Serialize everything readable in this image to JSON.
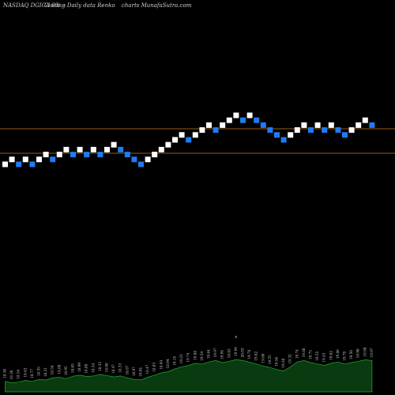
{
  "header": {
    "symbol_label": "NASDAQ DGICA 0% --",
    "chart_type_label": "Closing Daily data  Renko",
    "site_label": "charts MunafaSutra.com"
  },
  "colors": {
    "background": "#000000",
    "up_brick": "#ffffff",
    "down_brick": "#1e7cf2",
    "level_line": "#c8781e",
    "volume_fill": "#0a3a10",
    "volume_stroke": "#1fae2e",
    "label_text": "#cfcfcf"
  },
  "chart_data": {
    "type": "renko",
    "brick_size": 1,
    "levels": [
      5,
      0
    ],
    "bricks": [
      {
        "value": 0,
        "dir": "up"
      },
      {
        "value": 1,
        "dir": "up"
      },
      {
        "value": 0,
        "dir": "down"
      },
      {
        "value": 1,
        "dir": "up"
      },
      {
        "value": 0,
        "dir": "down"
      },
      {
        "value": 1,
        "dir": "up"
      },
      {
        "value": 2,
        "dir": "up"
      },
      {
        "value": 1,
        "dir": "down"
      },
      {
        "value": 2,
        "dir": "up"
      },
      {
        "value": 3,
        "dir": "up"
      },
      {
        "value": 2,
        "dir": "down"
      },
      {
        "value": 3,
        "dir": "up"
      },
      {
        "value": 2,
        "dir": "down"
      },
      {
        "value": 3,
        "dir": "up"
      },
      {
        "value": 2,
        "dir": "down"
      },
      {
        "value": 3,
        "dir": "up"
      },
      {
        "value": 4,
        "dir": "up"
      },
      {
        "value": 3,
        "dir": "down"
      },
      {
        "value": 2,
        "dir": "down"
      },
      {
        "value": 1,
        "dir": "down"
      },
      {
        "value": 0,
        "dir": "down"
      },
      {
        "value": 1,
        "dir": "up"
      },
      {
        "value": 2,
        "dir": "up"
      },
      {
        "value": 3,
        "dir": "up"
      },
      {
        "value": 4,
        "dir": "up"
      },
      {
        "value": 5,
        "dir": "up"
      },
      {
        "value": 6,
        "dir": "up"
      },
      {
        "value": 5,
        "dir": "down"
      },
      {
        "value": 6,
        "dir": "up"
      },
      {
        "value": 7,
        "dir": "up"
      },
      {
        "value": 8,
        "dir": "up"
      },
      {
        "value": 7,
        "dir": "down"
      },
      {
        "value": 8,
        "dir": "up"
      },
      {
        "value": 9,
        "dir": "up"
      },
      {
        "value": 10,
        "dir": "up"
      },
      {
        "value": 9,
        "dir": "down"
      },
      {
        "value": 10,
        "dir": "up"
      },
      {
        "value": 9,
        "dir": "down"
      },
      {
        "value": 8,
        "dir": "down"
      },
      {
        "value": 7,
        "dir": "down"
      },
      {
        "value": 6,
        "dir": "down"
      },
      {
        "value": 5,
        "dir": "down"
      },
      {
        "value": 6,
        "dir": "up"
      },
      {
        "value": 7,
        "dir": "up"
      },
      {
        "value": 8,
        "dir": "up"
      },
      {
        "value": 7,
        "dir": "down"
      },
      {
        "value": 8,
        "dir": "up"
      },
      {
        "value": 7,
        "dir": "down"
      },
      {
        "value": 8,
        "dir": "up"
      },
      {
        "value": 7,
        "dir": "down"
      },
      {
        "value": 6,
        "dir": "down"
      },
      {
        "value": 7,
        "dir": "up"
      },
      {
        "value": 8,
        "dir": "up"
      },
      {
        "value": 9,
        "dir": "up"
      },
      {
        "value": 8,
        "dir": "down"
      }
    ],
    "volume": [
      0.3,
      0.26,
      0.28,
      0.33,
      0.3,
      0.36,
      0.34,
      0.4,
      0.42,
      0.38,
      0.45,
      0.48,
      0.44,
      0.46,
      0.5,
      0.47,
      0.43,
      0.46,
      0.4,
      0.36,
      0.34,
      0.42,
      0.48,
      0.55,
      0.58,
      0.66,
      0.72,
      0.76,
      0.82,
      0.8,
      0.86,
      0.9,
      0.84,
      0.88,
      0.93,
      0.9,
      0.85,
      0.8,
      0.74,
      0.7,
      0.64,
      0.6,
      0.72,
      0.86,
      0.9,
      0.84,
      0.8,
      0.76,
      0.82,
      0.86,
      0.8,
      0.84,
      0.88,
      0.92,
      0.9
    ],
    "labels": [
      "18.36",
      "18.36",
      "18.54",
      "18.62",
      "18.77",
      "18.55",
      "18.21",
      "18.54",
      "18.68",
      "18.95",
      "18.65",
      "18.99",
      "18.88",
      "18.34",
      "18.33",
      "18.08",
      "18.47",
      "18.33",
      "18.87",
      "18.97",
      "19.04",
      "18.47",
      "18.83",
      "18.84",
      "18.94",
      "19.18",
      "19.23",
      "19.74",
      "19.88",
      "19.54",
      "19.64",
      "19.97",
      "19.94",
      "19.83",
      "19.94",
      "20.03",
      "19.78",
      "19.82",
      "19.60",
      "19.55",
      "19.56",
      "19.28",
      "19.32",
      "19.74",
      "19.88",
      "19.75",
      "19.55",
      "19.43",
      "19.62",
      "19.86",
      "19.79",
      "19.50",
      "19.90",
      "19.98",
      "19.97"
    ],
    "marker": "*"
  }
}
